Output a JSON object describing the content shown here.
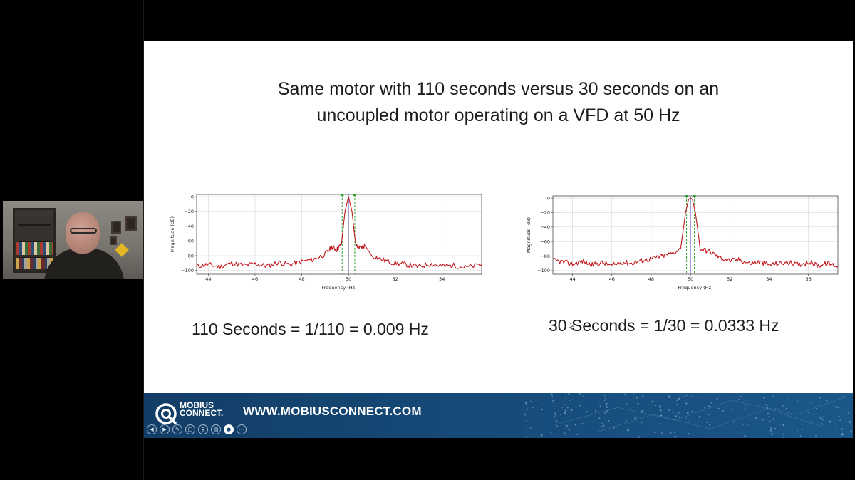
{
  "slide": {
    "title_line1": "Same motor with 110 seconds versus 30 seconds on an",
    "title_line2": "uncoupled motor operating on a VFD at 50 Hz",
    "caption_left": "110 Seconds = 1/110 = 0.009 Hz",
    "caption_right": "30 Seconds = 1/30 = 0.0333 Hz"
  },
  "footer": {
    "brand_line1": "MOBIUS",
    "brand_line2": "CONNECT.",
    "url": "WWW.MOBIUSCONNECT.COM"
  },
  "toolbar": {
    "icons": [
      "prev-icon",
      "next-icon",
      "pen-icon",
      "slides-icon",
      "zoom-icon",
      "subtitles-icon",
      "camera-icon",
      "more-icon"
    ]
  },
  "colors": {
    "footer_blue": "#164a78",
    "trace_red": "#c0161b",
    "marker_green": "#2ca02c"
  },
  "chart_data": [
    {
      "type": "line",
      "xlabel": "Frequency (Hz)",
      "ylabel": "Magnitude (dB)",
      "xlim": [
        43.5,
        55.7
      ],
      "ylim": [
        -105,
        3
      ],
      "xticks": [
        44,
        46,
        48,
        50,
        52,
        54
      ],
      "yticks": [
        0,
        -20,
        -40,
        -60,
        -80,
        -100
      ],
      "grid": true,
      "markers": [
        49.73,
        50.27
      ],
      "center_line": 50,
      "series": [
        {
          "x": [
            43.5,
            44.0,
            44.5,
            45.0,
            45.5,
            46.0,
            46.5,
            47.0,
            47.5,
            48.0,
            48.5,
            49.0,
            49.3,
            49.5,
            49.7,
            49.85,
            50.0,
            50.15,
            50.3,
            50.5,
            50.7,
            51.0,
            51.5,
            52.0,
            52.5,
            53.0,
            53.5,
            54.0,
            54.5,
            55.0,
            55.7
          ],
          "y": [
            -94,
            -92,
            -95,
            -90,
            -93,
            -91,
            -94,
            -89,
            -92,
            -88,
            -85,
            -78,
            -68,
            -72,
            -64,
            -20,
            0,
            -20,
            -64,
            -70,
            -66,
            -80,
            -86,
            -90,
            -92,
            -95,
            -91,
            -94,
            -93,
            -96,
            -92
          ]
        }
      ]
    },
    {
      "type": "line",
      "xlabel": "Frequency (Hz)",
      "ylabel": "Magnitude (dB)",
      "xlim": [
        43.0,
        57.5
      ],
      "ylim": [
        -105,
        3
      ],
      "xticks": [
        44,
        46,
        48,
        50,
        52,
        54,
        56
      ],
      "yticks": [
        0,
        -20,
        -40,
        -60,
        -80,
        -100
      ],
      "grid": true,
      "markers": [
        49.8,
        50.2
      ],
      "center_line": 50,
      "series": [
        {
          "x": [
            43.0,
            43.5,
            44.0,
            44.5,
            45.0,
            45.5,
            46.0,
            46.5,
            47.0,
            47.5,
            48.0,
            48.5,
            49.0,
            49.5,
            49.75,
            49.9,
            50.0,
            50.1,
            50.25,
            50.5,
            51.0,
            51.5,
            52.0,
            52.5,
            53.0,
            53.5,
            54.0,
            54.5,
            55.0,
            55.5,
            56.0,
            56.5,
            57.0,
            57.5
          ],
          "y": [
            -86,
            -88,
            -91,
            -87,
            -92,
            -89,
            -93,
            -88,
            -90,
            -86,
            -84,
            -80,
            -77,
            -70,
            -20,
            -2,
            0,
            -2,
            -20,
            -70,
            -74,
            -82,
            -86,
            -85,
            -90,
            -88,
            -92,
            -90,
            -89,
            -92,
            -88,
            -93,
            -90,
            -94
          ]
        }
      ]
    }
  ]
}
